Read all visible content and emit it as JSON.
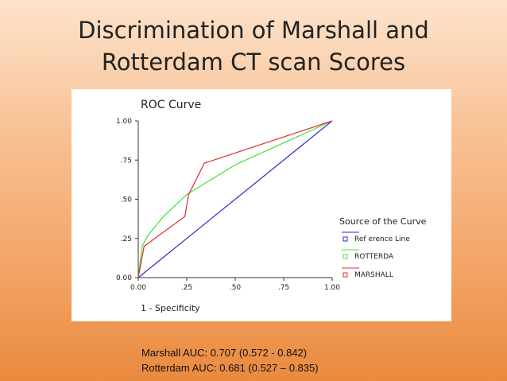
{
  "slide": {
    "title_line1": "Discrimination of Marshall and",
    "title_line2": "Rotterdam CT scan Scores",
    "notes": [
      "Marshall AUC: 0.707 (0.572 - 0.842)",
      "Rotterdam AUC: 0.681 (0.527 – 0.835)"
    ]
  },
  "chart_data": {
    "type": "line",
    "title": "ROC Curve",
    "xlabel": "1 - Specificity",
    "ylabel": "",
    "xlim": [
      0,
      1
    ],
    "ylim": [
      0,
      1
    ],
    "x_ticks": [
      0,
      0.25,
      0.5,
      0.75,
      1
    ],
    "y_ticks": [
      0,
      0.25,
      0.5,
      0.75,
      1
    ],
    "x_tick_labels": [
      "0.00",
      ".25",
      ".50",
      ".75",
      "1.00"
    ],
    "y_tick_labels": [
      "0.00",
      ".25",
      ".50",
      ".75",
      "1.00"
    ],
    "grid": false,
    "legend": {
      "title": "Source of the Curve",
      "placement": "right"
    },
    "series": [
      {
        "name": "Ref erence Line",
        "color": "#2b2bcf",
        "x": [
          0,
          1
        ],
        "y": [
          0,
          1
        ]
      },
      {
        "name": "ROTTERDA",
        "color": "#45e03a",
        "x": [
          0,
          0.02,
          0.05,
          0.13,
          0.25,
          0.5,
          1
        ],
        "y": [
          0,
          0.2,
          0.27,
          0.39,
          0.53,
          0.72,
          1
        ]
      },
      {
        "name": "MARSHALL",
        "color": "#e02a2a",
        "x": [
          0,
          0.03,
          0.24,
          0.26,
          0.34,
          1
        ],
        "y": [
          0,
          0.2,
          0.39,
          0.53,
          0.73,
          1
        ]
      }
    ]
  }
}
